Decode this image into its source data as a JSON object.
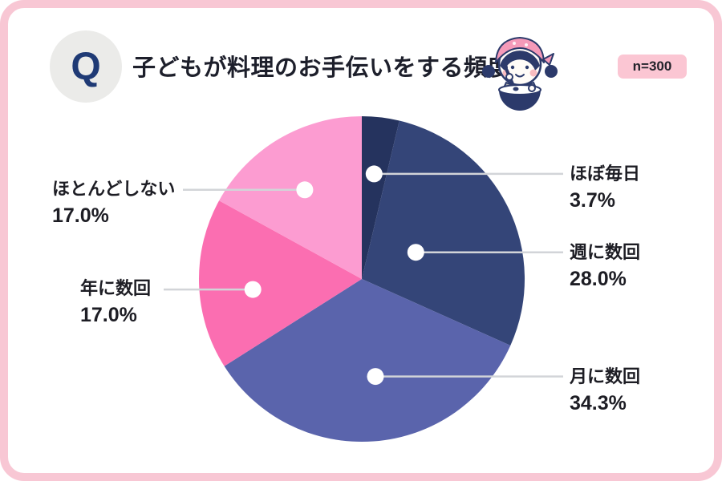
{
  "card": {
    "border_color": "#F8C7D4",
    "background": "#FFFFFF"
  },
  "header": {
    "q_mark": "Q",
    "title": "子どもが料理のお手伝いをする頻度",
    "badge": "n=300",
    "badge_bg": "#FBC6D3",
    "q_color": "#1F3A75",
    "illustration": "cooking-girl-with-mixing-bowl"
  },
  "chart_data": {
    "type": "pie",
    "title": "子どもが料理のお手伝いをする頻度",
    "sample_size_label": "n=300",
    "start_angle_deg": 0,
    "direction": "clockwise",
    "legend_position": "callout-labels",
    "segments": [
      {
        "label": "ほぼ毎日",
        "value_pct": 3.7,
        "display": "3.7%",
        "color": "#25335E"
      },
      {
        "label": "週に数回",
        "value_pct": 28.0,
        "display": "28.0%",
        "color": "#344578"
      },
      {
        "label": "月に数回",
        "value_pct": 34.3,
        "display": "34.3%",
        "color": "#5A64AC"
      },
      {
        "label": "年に数回",
        "value_pct": 17.0,
        "display": "17.0%",
        "color": "#FB6EB1"
      },
      {
        "label": "ほとんどしない",
        "value_pct": 17.0,
        "display": "17.0%",
        "color": "#FC9CD1"
      }
    ],
    "leader_line_color": "#D2D4D8",
    "dot_color": "#FFFFFF"
  }
}
